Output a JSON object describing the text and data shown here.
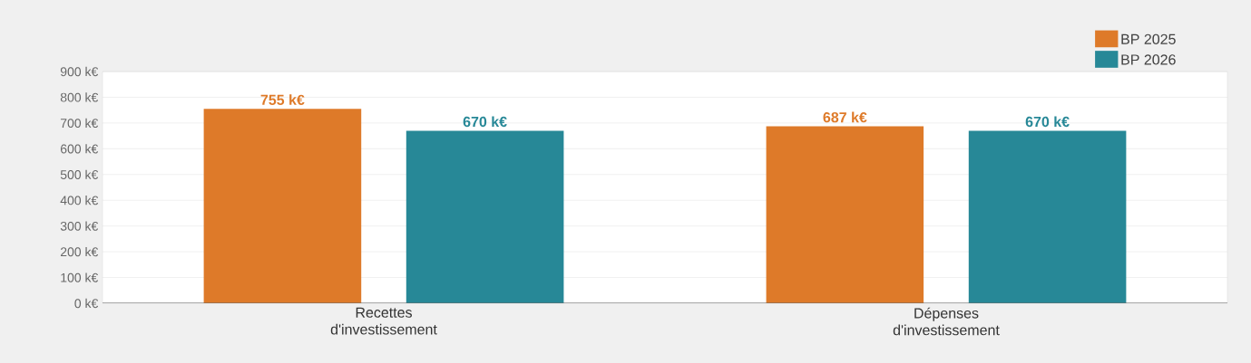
{
  "chart_data": {
    "type": "bar",
    "categories": [
      "Recettes d'investissement",
      "Dépenses d'investissement"
    ],
    "series": [
      {
        "name": "BP 2025",
        "color": "#de7a29",
        "values": [
          755,
          687
        ],
        "value_labels": [
          "755 k€",
          "687 k€"
        ]
      },
      {
        "name": "BP 2026",
        "color": "#278897",
        "values": [
          670,
          670
        ],
        "value_labels": [
          "670 k€",
          "670 k€"
        ]
      }
    ],
    "ylim": [
      0,
      900
    ],
    "yticks": [
      {
        "value": 0,
        "label": "0 k€"
      },
      {
        "value": 100,
        "label": "100 k€"
      },
      {
        "value": 200,
        "label": "200 k€"
      },
      {
        "value": 300,
        "label": "300 k€"
      },
      {
        "value": 400,
        "label": "400 k€"
      },
      {
        "value": 500,
        "label": "500 k€"
      },
      {
        "value": 600,
        "label": "600 k€"
      },
      {
        "value": 700,
        "label": "700 k€"
      },
      {
        "value": 800,
        "label": "800 k€"
      },
      {
        "value": 900,
        "label": "900 k€"
      }
    ],
    "grid": "y",
    "legend": "top right"
  }
}
